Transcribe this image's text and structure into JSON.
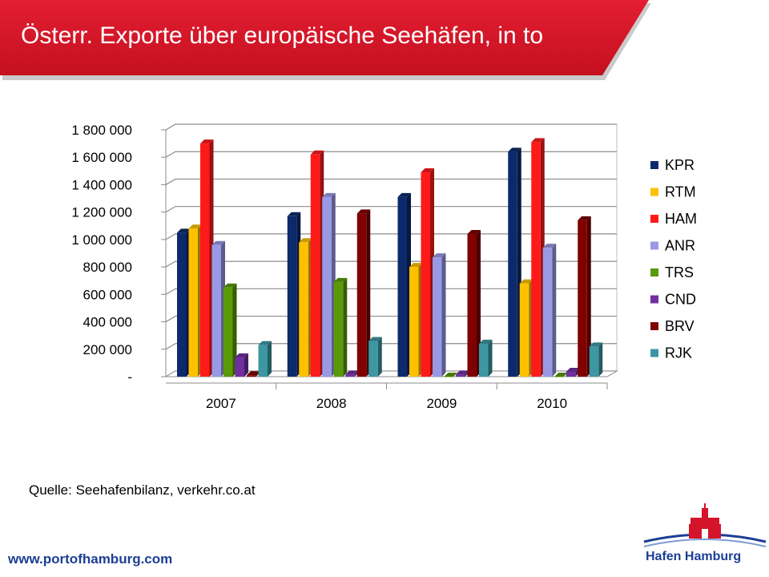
{
  "header": {
    "title": "Österr. Exporte über europäische Seehäfen, in to",
    "accent_color": "#d3142a"
  },
  "footer": {
    "source": "Quelle: Seehafenbilanz, verkehr.co.at",
    "url": "www.portofhamburg.com",
    "brand": "Hafen Hamburg",
    "brand_color": "#1c3f94"
  },
  "chart_data": {
    "type": "bar",
    "title": "",
    "xlabel": "",
    "ylabel": "",
    "categories": [
      "2007",
      "2008",
      "2009",
      "2010"
    ],
    "ylim": [
      0,
      1800000
    ],
    "yticks": [
      0,
      200000,
      400000,
      600000,
      800000,
      1000000,
      1200000,
      1400000,
      1600000,
      1800000
    ],
    "ytick_labels": [
      "-",
      "200 000",
      "400 000",
      "600 000",
      "800 000",
      "1 000 000",
      "1 200 000",
      "1 400 000",
      "1 600 000",
      "1 800 000"
    ],
    "grid": true,
    "legend_position": "right",
    "series": [
      {
        "name": "KPR",
        "color": "#0c2a6b",
        "values": [
          1050000,
          1170000,
          1310000,
          1640000
        ]
      },
      {
        "name": "RTM",
        "color": "#ffc000",
        "values": [
          1080000,
          980000,
          800000,
          680000
        ]
      },
      {
        "name": "HAM",
        "color": "#ff1a1a",
        "values": [
          1700000,
          1620000,
          1490000,
          1710000
        ]
      },
      {
        "name": "ANR",
        "color": "#9999e6",
        "values": [
          960000,
          1310000,
          870000,
          940000
        ]
      },
      {
        "name": "TRS",
        "color": "#5a9a08",
        "values": [
          650000,
          690000,
          0,
          0
        ]
      },
      {
        "name": "CND",
        "color": "#7030a0",
        "values": [
          140000,
          15000,
          15000,
          35000
        ]
      },
      {
        "name": "BRV",
        "color": "#800000",
        "values": [
          10000,
          1190000,
          1040000,
          1140000
        ]
      },
      {
        "name": "RJK",
        "color": "#3c97a3",
        "values": [
          230000,
          260000,
          240000,
          220000
        ]
      }
    ]
  }
}
